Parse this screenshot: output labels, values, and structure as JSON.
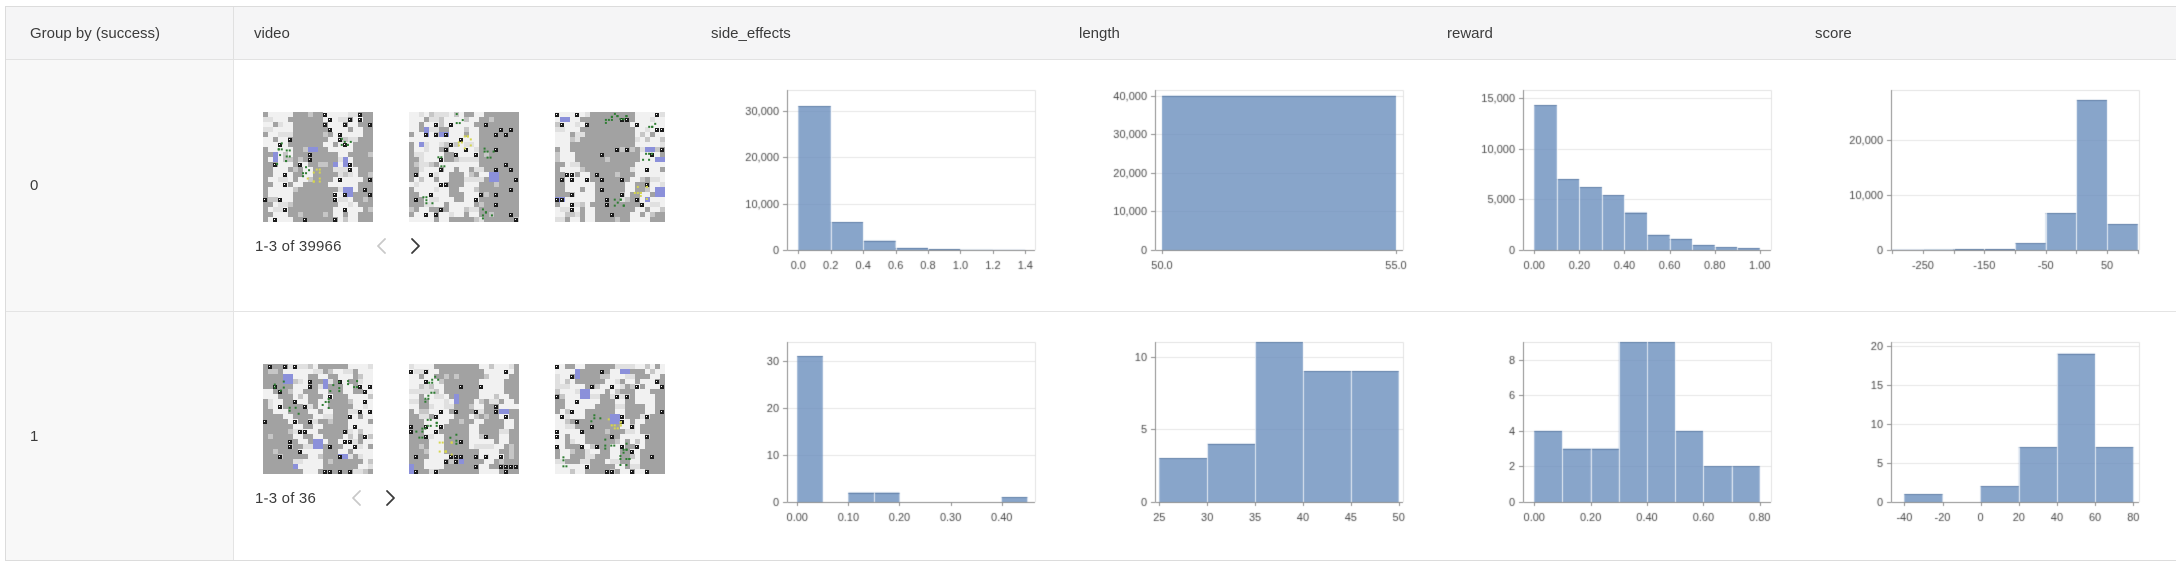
{
  "table": {
    "columns": [
      {
        "key": "group",
        "label": "Group by (success)"
      },
      {
        "key": "video",
        "label": "video"
      },
      {
        "key": "side_effects",
        "label": "side_effects"
      },
      {
        "key": "length",
        "label": "length"
      },
      {
        "key": "reward",
        "label": "reward"
      },
      {
        "key": "score",
        "label": "score"
      }
    ],
    "rows": [
      {
        "group": "0",
        "video": {
          "pagination": "1-3 of 39966",
          "prev_enabled": false,
          "next_enabled": true,
          "thumbnails_shown": 3
        }
      },
      {
        "group": "1",
        "video": {
          "pagination": "1-3 of 36",
          "prev_enabled": false,
          "next_enabled": true,
          "thumbnails_shown": 3
        }
      }
    ]
  },
  "chart_data": [
    {
      "type": "bar",
      "group": "0",
      "column": "side_effects",
      "title": "side_effects",
      "bin_start": 0,
      "bin_width": 0.2,
      "values": [
        31000,
        6000,
        2000,
        450,
        120,
        60,
        40
      ],
      "xlim": [
        -0.07,
        1.46
      ],
      "ylim": [
        0,
        34500
      ],
      "yticks": [
        0,
        10000,
        20000,
        30000
      ],
      "xtick_vals": [
        0,
        0.2,
        0.4,
        0.6,
        0.8,
        1.0,
        1.2,
        1.4
      ],
      "xtick_labels": [
        "0.0",
        "0.2",
        "0.4",
        "0.6",
        "0.8",
        "1.0",
        "1.2",
        "1.4"
      ],
      "grid": true,
      "legend": "none"
    },
    {
      "type": "bar",
      "group": "0",
      "column": "length",
      "title": "length",
      "bin_start": 50,
      "bin_width": 5,
      "values": [
        40000
      ],
      "xlim": [
        49.85,
        55.15
      ],
      "ylim": [
        0,
        41500
      ],
      "yticks": [
        0,
        10000,
        20000,
        30000,
        40000
      ],
      "xtick_vals": [
        50,
        55
      ],
      "xtick_labels": [
        "50.0",
        "55.0"
      ],
      "grid": true,
      "legend": "none"
    },
    {
      "type": "bar",
      "group": "0",
      "column": "reward",
      "title": "reward",
      "bin_start": 0,
      "bin_width": 0.1,
      "values": [
        14300,
        7000,
        6200,
        5400,
        3700,
        1500,
        1100,
        500,
        250,
        150
      ],
      "xlim": [
        -0.05,
        1.05
      ],
      "ylim": [
        0,
        15800
      ],
      "yticks": [
        0,
        5000,
        10000,
        15000
      ],
      "xtick_vals": [
        0,
        0.2,
        0.4,
        0.6,
        0.8,
        1.0
      ],
      "xtick_labels": [
        "0.00",
        "0.20",
        "0.40",
        "0.60",
        "0.80",
        "1.00"
      ],
      "grid": true,
      "legend": "none"
    },
    {
      "type": "bar",
      "group": "0",
      "column": "score",
      "title": "score",
      "bin_start": -300,
      "bin_width": 50,
      "values": [
        60,
        90,
        130,
        180,
        1200,
        6700,
        27200,
        4700
      ],
      "xlim": [
        -302,
        102
      ],
      "ylim": [
        0,
        29000
      ],
      "yticks": [
        0,
        10000,
        20000
      ],
      "xtick_vals": [
        -250,
        -150,
        -50,
        50
      ],
      "xtick_labels": [
        "-250",
        "-150",
        "-50",
        "50"
      ],
      "minor_xtick_vals": [
        -300,
        -200,
        -100,
        0,
        100
      ],
      "grid": true,
      "legend": "none"
    },
    {
      "type": "bar",
      "group": "1",
      "column": "side_effects",
      "title": "side_effects",
      "bin_start": 0,
      "bin_width": 0.05,
      "values": [
        31,
        0,
        2,
        2,
        0,
        0,
        0,
        0,
        1
      ],
      "xlim": [
        -0.02,
        0.465
      ],
      "ylim": [
        0,
        34
      ],
      "yticks": [
        0,
        10,
        20,
        30
      ],
      "xtick_vals": [
        0,
        0.1,
        0.2,
        0.3,
        0.4
      ],
      "xtick_labels": [
        "0.00",
        "0.10",
        "0.20",
        "0.30",
        "0.40"
      ],
      "grid": true,
      "legend": "none"
    },
    {
      "type": "bar",
      "group": "1",
      "column": "length",
      "title": "length",
      "bin_start": 25,
      "bin_width": 5,
      "values": [
        3,
        4,
        11,
        9,
        9
      ],
      "xlim": [
        24.55,
        50.45
      ],
      "ylim": [
        0,
        11
      ],
      "yticks": [
        0,
        5,
        10
      ],
      "xtick_vals": [
        25,
        30,
        35,
        40,
        45,
        50
      ],
      "xtick_labels": [
        "25",
        "30",
        "35",
        "40",
        "45",
        "50"
      ],
      "grid": true,
      "legend": "none"
    },
    {
      "type": "bar",
      "group": "1",
      "column": "reward",
      "title": "reward",
      "bin_start": 0,
      "bin_width": 0.1,
      "values": [
        4,
        3,
        3,
        9,
        9,
        4,
        2,
        2
      ],
      "xlim": [
        -0.04,
        0.84
      ],
      "ylim": [
        0,
        9
      ],
      "yticks": [
        0,
        2,
        4,
        6,
        8
      ],
      "xtick_vals": [
        0,
        0.2,
        0.4,
        0.6,
        0.8
      ],
      "xtick_labels": [
        "0.00",
        "0.20",
        "0.40",
        "0.60",
        "0.80"
      ],
      "grid": true,
      "legend": "none"
    },
    {
      "type": "bar",
      "group": "1",
      "column": "score",
      "title": "score",
      "bin_start": -40,
      "bin_width": 20,
      "values": [
        1,
        0,
        2,
        7,
        19,
        7
      ],
      "xlim": [
        -47,
        83
      ],
      "ylim": [
        0,
        20.5
      ],
      "yticks": [
        0,
        5,
        10,
        15,
        20
      ],
      "xtick_vals": [
        -40,
        -20,
        0,
        20,
        40,
        60,
        80
      ],
      "xtick_labels": [
        "-40",
        "-20",
        "0",
        "20",
        "40",
        "60",
        "80"
      ],
      "grid": true,
      "legend": "none"
    }
  ],
  "colors": {
    "histogram_bar": "rgba(106,142,189,0.8)",
    "histogram_bar_top": "rgba(88,120,162,0.9)",
    "bar_separator": "rgba(255,255,255,0.75)",
    "grid_line": "#e6e6e6",
    "plot_frame": "#e2e2e2",
    "axis_line": "#8c8c8c",
    "tick_text": "#4a4a4a",
    "header_bg": "#f5f5f6",
    "group_col_bg": "#f8f8f8",
    "chevron_disabled": "#c9c9c9",
    "chevron_enabled": "#3a3a3a"
  }
}
